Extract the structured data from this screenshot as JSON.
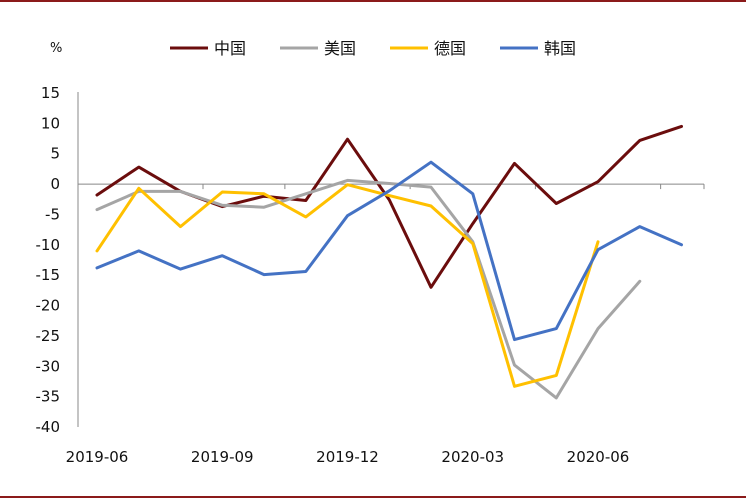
{
  "chart_data": {
    "type": "line",
    "title": "",
    "ylabel": "%",
    "xlabel": "",
    "ylim": [
      -40,
      15
    ],
    "yticks": [
      15,
      10,
      5,
      0,
      -5,
      -10,
      -15,
      -20,
      -25,
      -30,
      -35,
      -40
    ],
    "x": [
      "2019-06",
      "2019-07",
      "2019-08",
      "2019-09",
      "2019-10",
      "2019-11",
      "2019-12",
      "2020-01",
      "2020-02",
      "2020-03",
      "2020-04",
      "2020-05",
      "2020-06",
      "2020-07",
      "2020-08"
    ],
    "xtick_labels": [
      "2019-06",
      "2019-09",
      "2019-12",
      "2020-03",
      "2020-06"
    ],
    "legend_position": "top",
    "grid": false,
    "series": [
      {
        "name": "中国",
        "color": "#6b0d0d",
        "values": [
          -1.8,
          2.8,
          -1.2,
          -3.7,
          -2.0,
          -2.7,
          7.4,
          -2.6,
          -17.0,
          -6.5,
          3.4,
          -3.2,
          0.4,
          7.2,
          9.5
        ]
      },
      {
        "name": "美国",
        "color": "#a5a5a5",
        "values": [
          -4.2,
          -1.2,
          -1.2,
          -3.5,
          -3.8,
          -1.6,
          0.6,
          0.1,
          -0.5,
          -9.5,
          -29.8,
          -35.2,
          -23.8,
          -16.0,
          null
        ]
      },
      {
        "name": "德国",
        "color": "#ffc000",
        "values": [
          -11.0,
          -0.7,
          -7.0,
          -1.3,
          -1.6,
          -5.4,
          -0.1,
          -1.9,
          -3.6,
          -9.8,
          -33.3,
          -31.5,
          -9.5,
          null,
          null
        ]
      },
      {
        "name": "韩国",
        "color": "#4472c4",
        "values": [
          -13.8,
          -11.0,
          -14.0,
          -11.8,
          -14.9,
          -14.4,
          -5.2,
          -1.1,
          3.6,
          -1.6,
          -25.6,
          -23.8,
          -10.8,
          -7.0,
          -10.0
        ]
      }
    ]
  }
}
